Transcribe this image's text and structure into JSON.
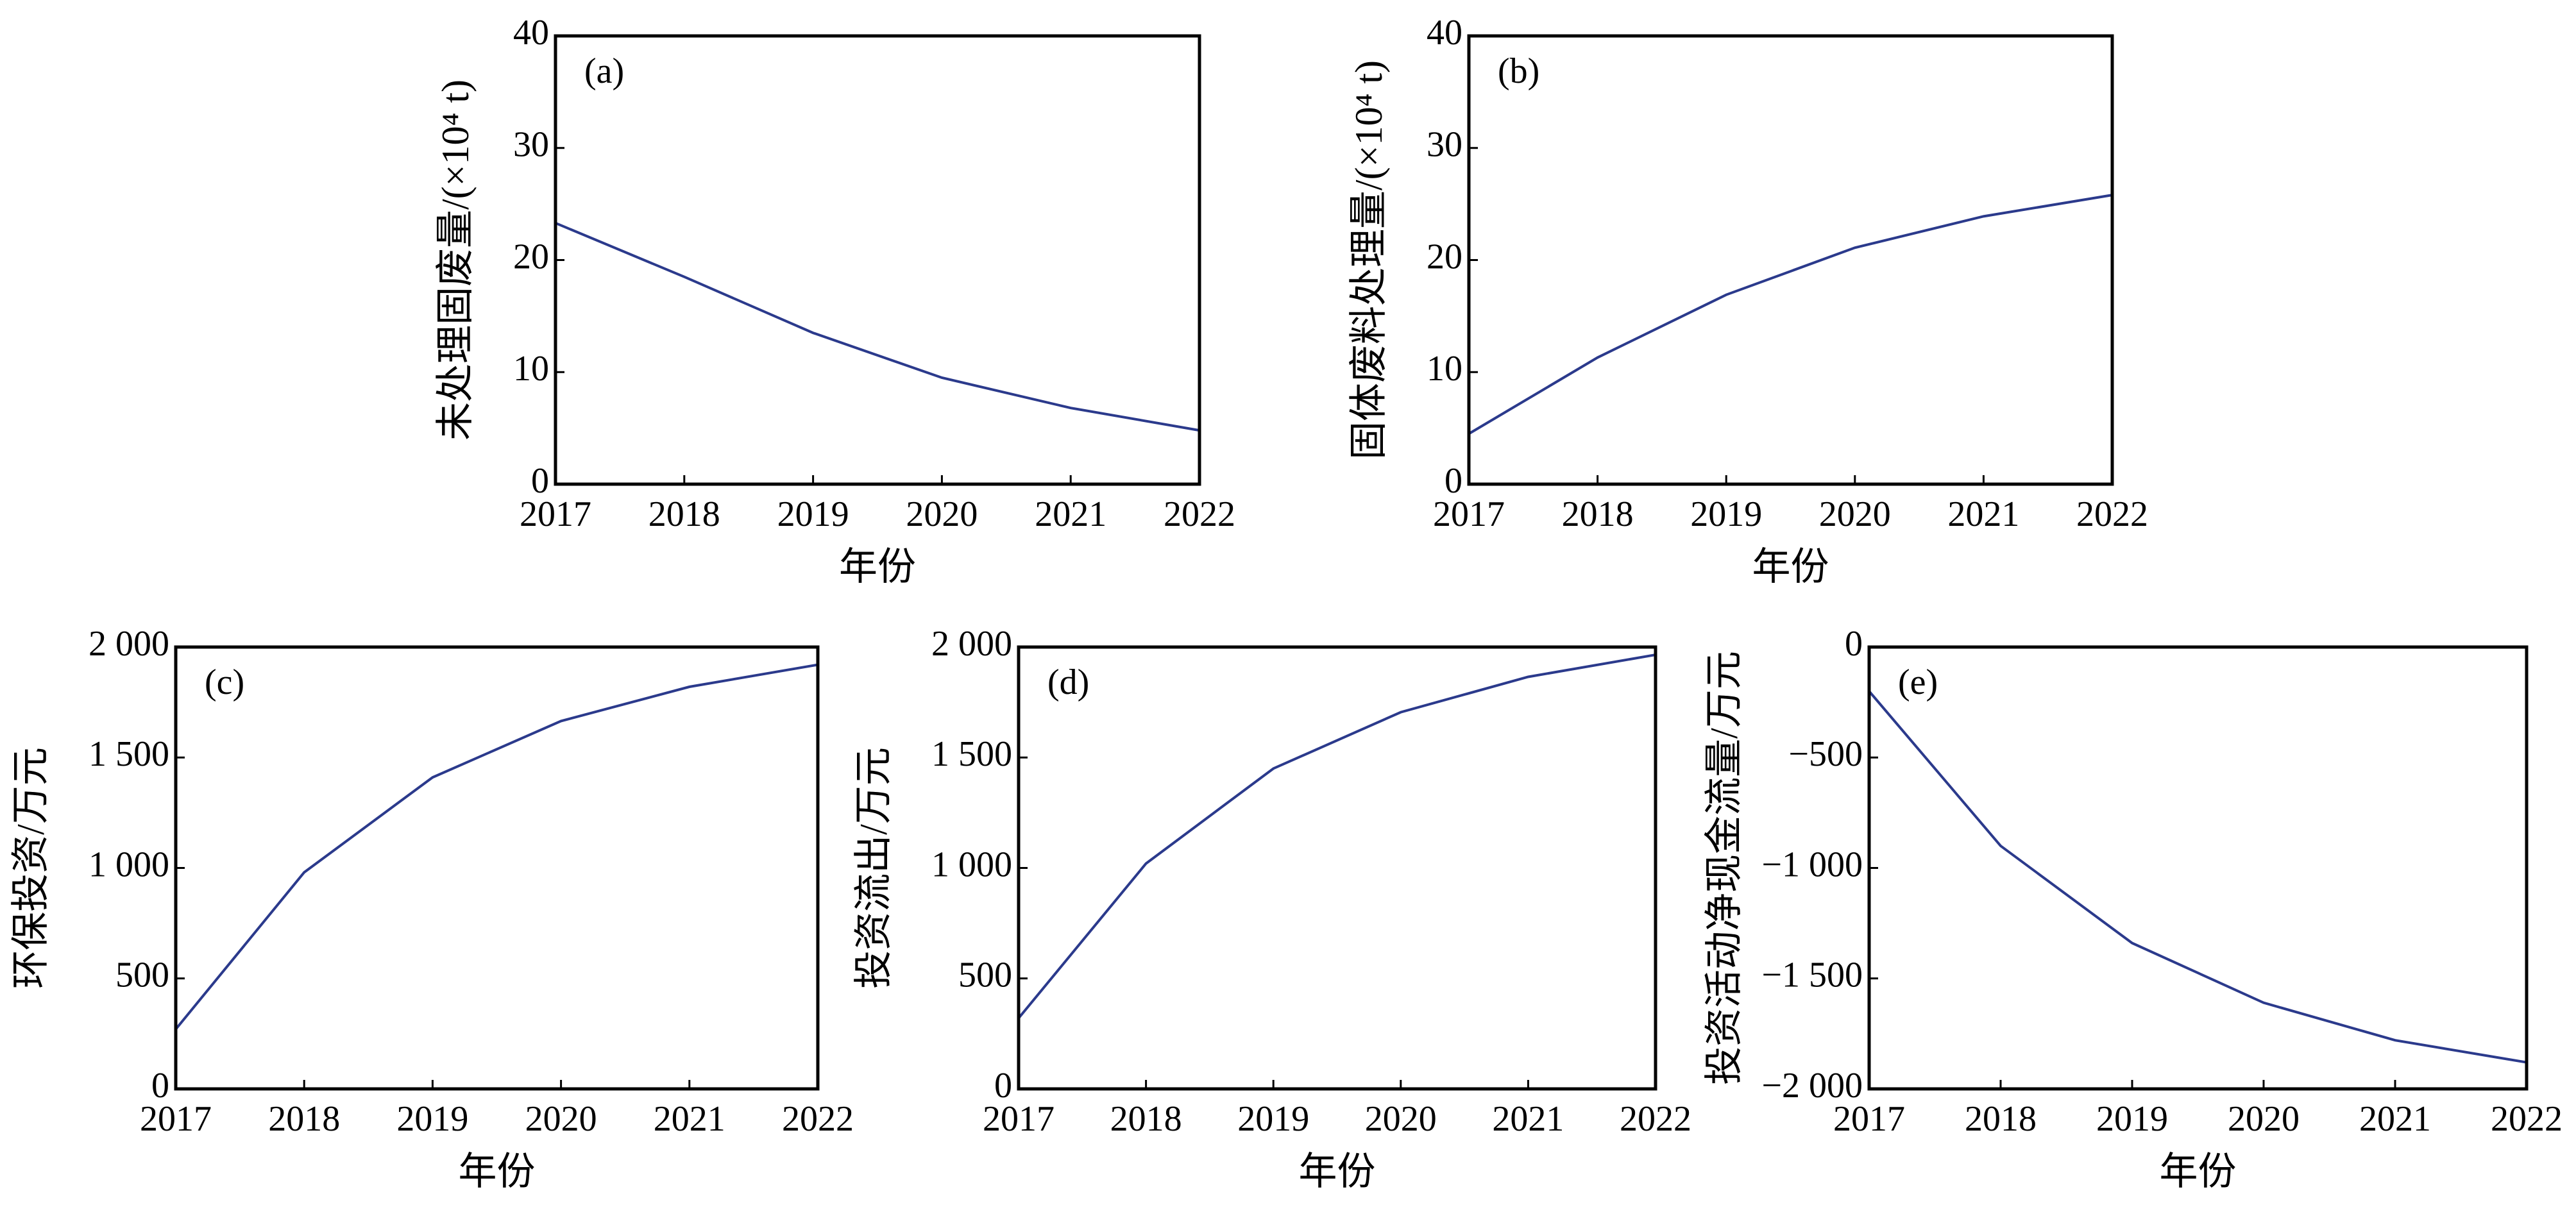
{
  "chart_data": [
    {
      "type": "line",
      "panel_label": "(a)",
      "xlabel": "年份",
      "ylabel": "未处理固废量/(×10⁴ t)",
      "x": [
        2017,
        2018,
        2019,
        2020,
        2021,
        2022
      ],
      "xlim": [
        2017,
        2022
      ],
      "xticks": [
        2017,
        2018,
        2019,
        2020,
        2021,
        2022
      ],
      "values": [
        23.3,
        18.5,
        13.5,
        9.5,
        6.8,
        4.8
      ],
      "color": "#2b3a8c",
      "ylim": [
        0,
        40
      ],
      "yticks": [
        0,
        10,
        20,
        30,
        40
      ]
    },
    {
      "type": "line",
      "panel_label": "(b)",
      "xlabel": "年份",
      "ylabel": "固体废料处理量/(×10⁴ t)",
      "x": [
        2017,
        2018,
        2019,
        2020,
        2021,
        2022
      ],
      "xlim": [
        2017,
        2022
      ],
      "xticks": [
        2017,
        2018,
        2019,
        2020,
        2021,
        2022
      ],
      "values": [
        4.5,
        11.3,
        16.9,
        21.1,
        23.9,
        25.8
      ],
      "color": "#2b3a8c",
      "ylim": [
        0,
        40
      ],
      "yticks": [
        0,
        10,
        20,
        30,
        40
      ]
    },
    {
      "type": "line",
      "panel_label": "(c)",
      "xlabel": "年份",
      "ylabel": "环保投资/万元",
      "x": [
        2017,
        2018,
        2019,
        2020,
        2021,
        2022
      ],
      "xlim": [
        2017,
        2022
      ],
      "xticks": [
        2017,
        2018,
        2019,
        2020,
        2021,
        2022
      ],
      "values": [
        270,
        980,
        1410,
        1665,
        1820,
        1920
      ],
      "color": "#2b3a8c",
      "ylim": [
        0,
        2000
      ],
      "yticks": [
        0,
        500,
        {
          "value": 1000,
          "label": "1 000"
        },
        {
          "value": 1500,
          "label": "1 500"
        },
        {
          "value": 2000,
          "label": "2 000"
        }
      ]
    },
    {
      "type": "line",
      "panel_label": "(d)",
      "xlabel": "年份",
      "ylabel": "投资流出/万元",
      "x": [
        2017,
        2018,
        2019,
        2020,
        2021,
        2022
      ],
      "xlim": [
        2017,
        2022
      ],
      "xticks": [
        2017,
        2018,
        2019,
        2020,
        2021,
        2022
      ],
      "values": [
        320,
        1020,
        1450,
        1705,
        1865,
        1965
      ],
      "color": "#2b3a8c",
      "ylim": [
        0,
        2000
      ],
      "yticks": [
        0,
        500,
        {
          "value": 1000,
          "label": "1 000"
        },
        {
          "value": 1500,
          "label": "1 500"
        },
        {
          "value": 2000,
          "label": "2 000"
        }
      ]
    },
    {
      "type": "line",
      "panel_label": "(e)",
      "xlabel": "年份",
      "ylabel": "投资活动净现金流量/万元",
      "x": [
        2017,
        2018,
        2019,
        2020,
        2021,
        2022
      ],
      "xlim": [
        2017,
        2022
      ],
      "xticks": [
        2017,
        2018,
        2019,
        2020,
        2021,
        2022
      ],
      "values": [
        -200,
        -900,
        -1340,
        -1610,
        -1780,
        -1880
      ],
      "color": "#2b3a8c",
      "ylim": [
        -2000,
        0
      ],
      "yticks": [
        {
          "value": -2000,
          "label": "−2 000"
        },
        {
          "value": -1500,
          "label": "−1 500"
        },
        {
          "value": -1000,
          "label": "−1 000"
        },
        {
          "value": -500,
          "label": "−500"
        },
        0
      ]
    }
  ]
}
